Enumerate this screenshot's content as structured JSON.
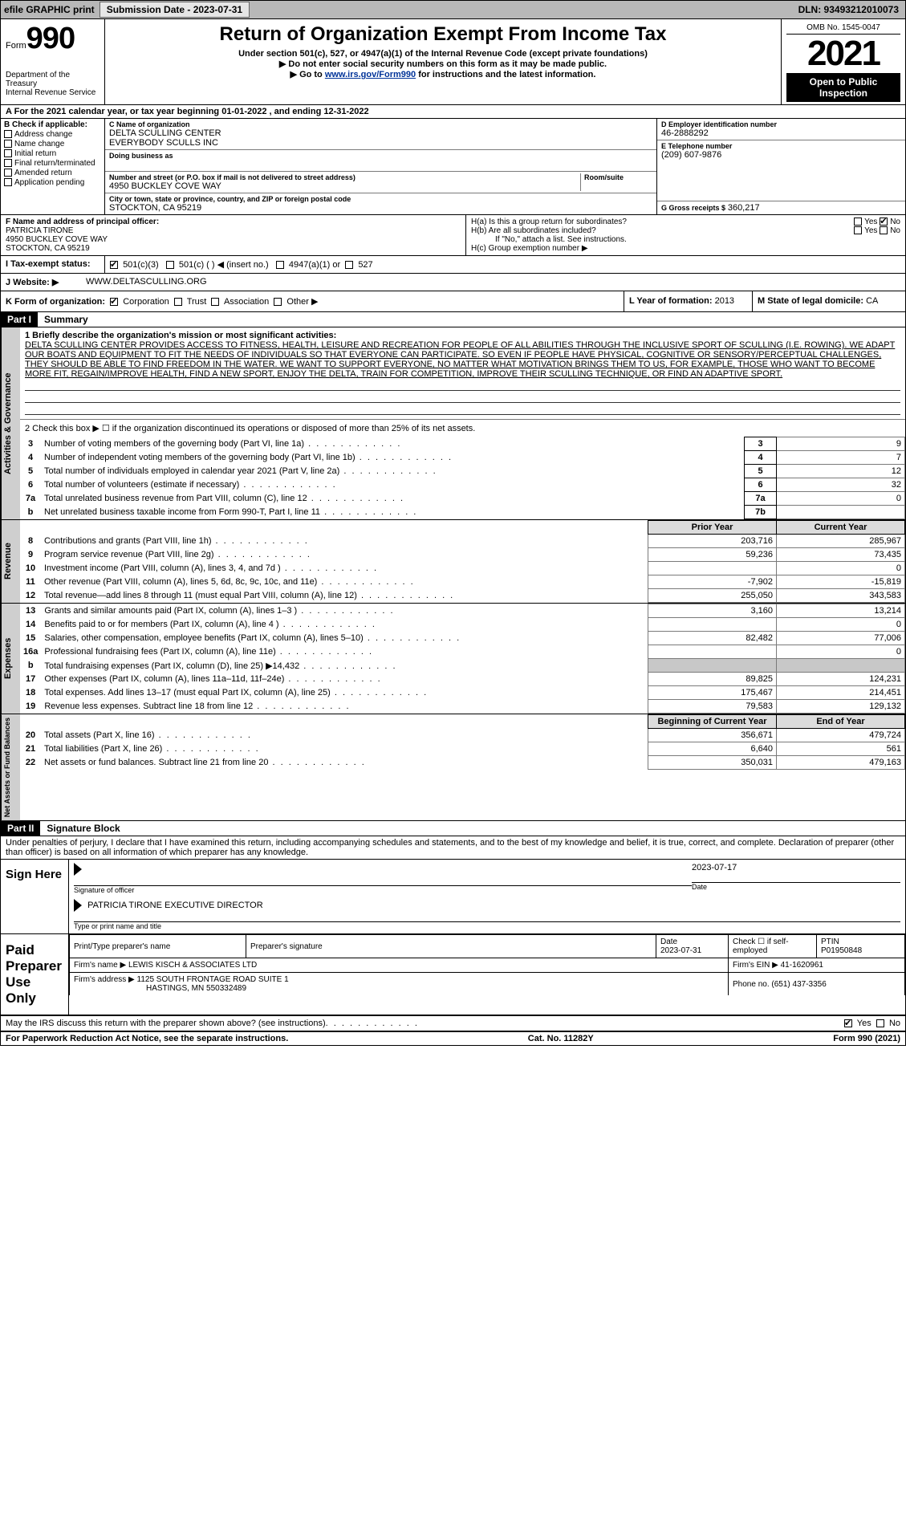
{
  "topbar": {
    "efile_label": "efile GRAPHIC print",
    "submission_label": "Submission Date - 2023-07-31",
    "dln": "DLN: 93493212010073"
  },
  "header": {
    "form_prefix": "Form",
    "form_number": "990",
    "dept1": "Department of the Treasury",
    "dept2": "Internal Revenue Service",
    "title": "Return of Organization Exempt From Income Tax",
    "sub1": "Under section 501(c), 527, or 4947(a)(1) of the Internal Revenue Code (except private foundations)",
    "sub2": "Do not enter social security numbers on this form as it may be made public.",
    "sub3_pre": "Go to ",
    "sub3_link": "www.irs.gov/Form990",
    "sub3_post": " for instructions and the latest information.",
    "omb": "OMB No. 1545-0047",
    "year": "2021",
    "open": "Open to Public Inspection"
  },
  "line_a": "For the 2021 calendar year, or tax year beginning 01-01-2022   , and ending 12-31-2022",
  "section_b": {
    "heading": "B Check if applicable:",
    "items": [
      "Address change",
      "Name change",
      "Initial return",
      "Final return/terminated",
      "Amended return",
      "Application pending"
    ]
  },
  "section_c": {
    "label": "C Name of organization",
    "name1": "DELTA SCULLING CENTER",
    "name2": "EVERYBODY SCULLS INC",
    "dba_label": "Doing business as",
    "street_label": "Number and street (or P.O. box if mail is not delivered to street address)",
    "room_label": "Room/suite",
    "street": "4950 BUCKLEY COVE WAY",
    "city_label": "City or town, state or province, country, and ZIP or foreign postal code",
    "city": "STOCKTON, CA  95219"
  },
  "section_d": {
    "label": "D Employer identification number",
    "value": "46-2888292"
  },
  "section_e": {
    "label": "E Telephone number",
    "value": "(209) 607-9876"
  },
  "section_g": {
    "label": "G Gross receipts $",
    "value": "360,217"
  },
  "section_f": {
    "label": "F  Name and address of principal officer:",
    "name": "PATRICIA TIRONE",
    "addr1": "4950 BUCKLEY COVE WAY",
    "addr2": "STOCKTON, CA  95219"
  },
  "section_h": {
    "ha": "H(a)  Is this a group return for subordinates?",
    "hb": "H(b)  Are all subordinates included?",
    "hc_note": "If \"No,\" attach a list. See instructions.",
    "hc": "H(c)  Group exemption number ▶"
  },
  "line_i": {
    "label": "I   Tax-exempt status:",
    "o1": "501(c)(3)",
    "o2": "501(c) (  ) ◀ (insert no.)",
    "o3": "4947(a)(1) or",
    "o4": "527"
  },
  "line_j": {
    "label": "J   Website: ▶",
    "value": "WWW.DELTASCULLING.ORG"
  },
  "line_k": {
    "label": "K Form of organization:",
    "o1": "Corporation",
    "o2": "Trust",
    "o3": "Association",
    "o4": "Other ▶"
  },
  "line_l": {
    "label": "L Year of formation:",
    "value": "2013"
  },
  "line_m": {
    "label": "M State of legal domicile:",
    "value": "CA"
  },
  "part1": {
    "hdr": "Part I",
    "title": "Summary",
    "q1_label": "1   Briefly describe the organization's mission or most significant activities:",
    "mission": "DELTA SCULLING CENTER PROVIDES ACCESS TO FITNESS, HEALTH, LEISURE AND RECREATION FOR PEOPLE OF ALL ABILITIES THROUGH THE INCLUSIVE SPORT OF SCULLING (I.E. ROWING). WE ADAPT OUR BOATS AND EQUIPMENT TO FIT THE NEEDS OF INDIVIDUALS SO THAT EVERYONE CAN PARTICIPATE. SO EVEN IF PEOPLE HAVE PHYSICAL, COGNITIVE OR SENSORY/PERCEPTUAL CHALLENGES, THEY SHOULD BE ABLE TO FIND FREEDOM IN THE WATER. WE WANT TO SUPPORT EVERYONE, NO MATTER WHAT MOTIVATION BRINGS THEM TO US, FOR EXAMPLE, THOSE WHO WANT TO BECOME MORE FIT, REGAIN/IMPROVE HEALTH, FIND A NEW SPORT, ENJOY THE DELTA, TRAIN FOR COMPETITION, IMPROVE THEIR SCULLING TECHNIQUE, OR FIND AN ADAPTIVE SPORT.",
    "q2": "2   Check this box ▶ ☐  if the organization discontinued its operations or disposed of more than 25% of its net assets.",
    "tabs": {
      "gov": "Activities & Governance",
      "rev": "Revenue",
      "exp": "Expenses",
      "net": "Net Assets or Fund Balances"
    },
    "col_prior": "Prior Year",
    "col_current": "Current Year",
    "col_begin": "Beginning of Current Year",
    "col_end": "End of Year",
    "gov_rows": [
      {
        "n": "3",
        "t": "Number of voting members of the governing body (Part VI, line 1a)",
        "box": "3",
        "v": "9"
      },
      {
        "n": "4",
        "t": "Number of independent voting members of the governing body (Part VI, line 1b)",
        "box": "4",
        "v": "7"
      },
      {
        "n": "5",
        "t": "Total number of individuals employed in calendar year 2021 (Part V, line 2a)",
        "box": "5",
        "v": "12"
      },
      {
        "n": "6",
        "t": "Total number of volunteers (estimate if necessary)",
        "box": "6",
        "v": "32"
      },
      {
        "n": "7a",
        "t": "Total unrelated business revenue from Part VIII, column (C), line 12",
        "box": "7a",
        "v": "0"
      },
      {
        "n": "b",
        "t": "Net unrelated business taxable income from Form 990-T, Part I, line 11",
        "box": "7b",
        "v": ""
      }
    ],
    "rev_rows": [
      {
        "n": "8",
        "t": "Contributions and grants (Part VIII, line 1h)",
        "p": "203,716",
        "c": "285,967"
      },
      {
        "n": "9",
        "t": "Program service revenue (Part VIII, line 2g)",
        "p": "59,236",
        "c": "73,435"
      },
      {
        "n": "10",
        "t": "Investment income (Part VIII, column (A), lines 3, 4, and 7d )",
        "p": "",
        "c": "0"
      },
      {
        "n": "11",
        "t": "Other revenue (Part VIII, column (A), lines 5, 6d, 8c, 9c, 10c, and 11e)",
        "p": "-7,902",
        "c": "-15,819"
      },
      {
        "n": "12",
        "t": "Total revenue—add lines 8 through 11 (must equal Part VIII, column (A), line 12)",
        "p": "255,050",
        "c": "343,583"
      }
    ],
    "exp_rows": [
      {
        "n": "13",
        "t": "Grants and similar amounts paid (Part IX, column (A), lines 1–3 )",
        "p": "3,160",
        "c": "13,214"
      },
      {
        "n": "14",
        "t": "Benefits paid to or for members (Part IX, column (A), line 4 )",
        "p": "",
        "c": "0"
      },
      {
        "n": "15",
        "t": "Salaries, other compensation, employee benefits (Part IX, column (A), lines 5–10)",
        "p": "82,482",
        "c": "77,006"
      },
      {
        "n": "16a",
        "t": "Professional fundraising fees (Part IX, column (A), line 11e)",
        "p": "",
        "c": "0"
      },
      {
        "n": "b",
        "t": "Total fundraising expenses (Part IX, column (D), line 25) ▶14,432",
        "p": "shade",
        "c": "shade"
      },
      {
        "n": "17",
        "t": "Other expenses (Part IX, column (A), lines 11a–11d, 11f–24e)",
        "p": "89,825",
        "c": "124,231"
      },
      {
        "n": "18",
        "t": "Total expenses. Add lines 13–17 (must equal Part IX, column (A), line 25)",
        "p": "175,467",
        "c": "214,451"
      },
      {
        "n": "19",
        "t": "Revenue less expenses. Subtract line 18 from line 12",
        "p": "79,583",
        "c": "129,132"
      }
    ],
    "net_rows": [
      {
        "n": "20",
        "t": "Total assets (Part X, line 16)",
        "p": "356,671",
        "c": "479,724"
      },
      {
        "n": "21",
        "t": "Total liabilities (Part X, line 26)",
        "p": "6,640",
        "c": "561"
      },
      {
        "n": "22",
        "t": "Net assets or fund balances. Subtract line 21 from line 20",
        "p": "350,031",
        "c": "479,163"
      }
    ]
  },
  "part2": {
    "hdr": "Part II",
    "title": "Signature Block",
    "penalty": "Under penalties of perjury, I declare that I have examined this return, including accompanying schedules and statements, and to the best of my knowledge and belief, it is true, correct, and complete. Declaration of preparer (other than officer) is based on all information of which preparer has any knowledge.",
    "sign_here": "Sign Here",
    "sig_officer_label": "Signature of officer",
    "sig_date": "2023-07-17",
    "sig_date_label": "Date",
    "officer_name": "PATRICIA TIRONE  EXECUTIVE DIRECTOR",
    "officer_label": "Type or print name and title",
    "paid_side": "Paid Preparer Use Only",
    "prep_cols": {
      "c1": "Print/Type preparer's name",
      "c2": "Preparer's signature",
      "c3": "Date",
      "c3v": "2023-07-31",
      "c4": "Check ☐ if self-employed",
      "c5": "PTIN",
      "c5v": "P01950848"
    },
    "firm_name_label": "Firm's name      ▶",
    "firm_name": "LEWIS KISCH & ASSOCIATES LTD",
    "firm_ein_label": "Firm's EIN ▶",
    "firm_ein": "41-1620961",
    "firm_addr_label": "Firm's address ▶",
    "firm_addr1": "1125 SOUTH FRONTAGE ROAD SUITE 1",
    "firm_addr2": "HASTINGS, MN  550332489",
    "firm_phone_label": "Phone no.",
    "firm_phone": "(651) 437-3356",
    "discuss": "May the IRS discuss this return with the preparer shown above? (see instructions)"
  },
  "footer": {
    "paperwork": "For Paperwork Reduction Act Notice, see the separate instructions.",
    "cat": "Cat. No. 11282Y",
    "form": "Form 990 (2021)"
  },
  "yes": "Yes",
  "no": "No"
}
